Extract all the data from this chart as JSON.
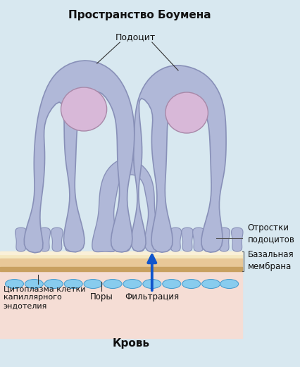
{
  "bg_color": "#d8e8f0",
  "endo_color": "#f5ddd5",
  "podocyte_fill": "#b0b8d8",
  "podocyte_edge": "#8890b8",
  "nucleus_fill": "#d8b8d8",
  "nucleus_edge": "#a888a8",
  "bm_color1": "#f5e0b8",
  "bm_color2": "#e8c898",
  "bm_color3": "#d4b070",
  "pore_fill": "#88ccee",
  "pore_edge": "#4499cc",
  "arrow_color": "#1155cc",
  "labels": {
    "title": "Пространство Боумена",
    "podocyte": "Подоцит",
    "processes": "Отростки\nподоцитов",
    "basement": "Базальная\nмембрана",
    "cytoplasm": "Цитоплазма клетки\nкапиллярного\nэндотелия",
    "pores": "Поры",
    "filtration": "Фильтрация",
    "blood": "Кровь"
  }
}
